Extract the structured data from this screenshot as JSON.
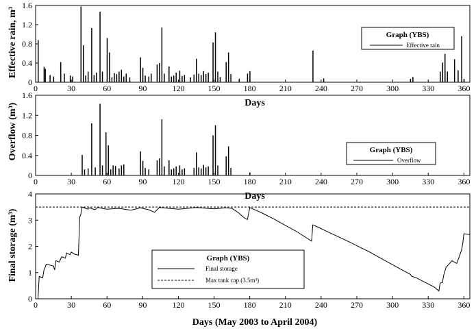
{
  "chart_data": [
    {
      "type": "bar",
      "ylabel": "Effective rain, m³",
      "xlabel": "Days",
      "xlim": [
        0,
        365
      ],
      "ylim": [
        0,
        1.6
      ],
      "xticks": [
        0,
        30,
        60,
        90,
        120,
        150,
        180,
        210,
        240,
        270,
        300,
        330,
        360
      ],
      "yticks": [
        "0",
        "0.4",
        "0.8",
        "1.2",
        "1.6"
      ],
      "legend": {
        "title": "Graph (YBS)",
        "position": "top-right",
        "entries": [
          "Effective rain"
        ]
      },
      "series": [
        {
          "name": "Effective rain",
          "color": "#000000",
          "points": [
            [
              2,
              0.88
            ],
            [
              7,
              0.32
            ],
            [
              8,
              0.28
            ],
            [
              12,
              0.15
            ],
            [
              15,
              0.12
            ],
            [
              21,
              0.42
            ],
            [
              24,
              0.18
            ],
            [
              29,
              0.14
            ],
            [
              31,
              0.12
            ],
            [
              38,
              1.58
            ],
            [
              40,
              0.77
            ],
            [
              42,
              0.14
            ],
            [
              44,
              0.22
            ],
            [
              47,
              1.13
            ],
            [
              49,
              0.15
            ],
            [
              51,
              0.2
            ],
            [
              54,
              1.47
            ],
            [
              56,
              0.22
            ],
            [
              60,
              0.92
            ],
            [
              62,
              0.62
            ],
            [
              64,
              0.1
            ],
            [
              66,
              0.19
            ],
            [
              68,
              0.17
            ],
            [
              70,
              0.22
            ],
            [
              72,
              0.26
            ],
            [
              74,
              0.12
            ],
            [
              76,
              0.18
            ],
            [
              79,
              0.1
            ],
            [
              88,
              0.52
            ],
            [
              90,
              0.3
            ],
            [
              92,
              0.14
            ],
            [
              95,
              0.12
            ],
            [
              97,
              0.18
            ],
            [
              102,
              0.37
            ],
            [
              104,
              0.4
            ],
            [
              106,
              1.14
            ],
            [
              108,
              0.18
            ],
            [
              112,
              0.33
            ],
            [
              114,
              0.12
            ],
            [
              116,
              0.14
            ],
            [
              118,
              0.2
            ],
            [
              121,
              0.24
            ],
            [
              123,
              0.13
            ],
            [
              125,
              0.15
            ],
            [
              130,
              0.1
            ],
            [
              133,
              0.16
            ],
            [
              135,
              0.49
            ],
            [
              137,
              0.18
            ],
            [
              139,
              0.15
            ],
            [
              141,
              0.23
            ],
            [
              143,
              0.17
            ],
            [
              145,
              0.2
            ],
            [
              149,
              0.83
            ],
            [
              151,
              1.04
            ],
            [
              153,
              0.22
            ],
            [
              155,
              0.11
            ],
            [
              160,
              0.42
            ],
            [
              162,
              0.62
            ],
            [
              164,
              0.17
            ],
            [
              171,
              0.07
            ],
            [
              178,
              0.18
            ],
            [
              180,
              0.23
            ],
            [
              233,
              0.66
            ],
            [
              242,
              0.08
            ],
            [
              315,
              0.07
            ],
            [
              317,
              0.11
            ],
            [
              340,
              0.22
            ],
            [
              342,
              0.41
            ],
            [
              344,
              0.59
            ],
            [
              346,
              0.22
            ],
            [
              352,
              0.48
            ],
            [
              355,
              0.25
            ],
            [
              358,
              0.96
            ],
            [
              360,
              0.07
            ]
          ]
        }
      ]
    },
    {
      "type": "bar",
      "ylabel": "Overflow (m³)",
      "xlabel": "Days",
      "xlim": [
        0,
        365
      ],
      "ylim": [
        0,
        1.6
      ],
      "xticks": [
        0,
        30,
        60,
        90,
        120,
        150,
        180,
        210,
        240,
        270,
        300,
        330,
        360
      ],
      "yticks": [
        "0",
        "0.4",
        "0.8",
        "1.2",
        "1.6"
      ],
      "legend": {
        "title": "Graph (YBS)",
        "position": "right",
        "entries": [
          "Overflow"
        ]
      },
      "series": [
        {
          "name": "Overflow",
          "color": "#000000",
          "points": [
            [
              39,
              0.41
            ],
            [
              41,
              0.12
            ],
            [
              44,
              0.14
            ],
            [
              47,
              1.04
            ],
            [
              50,
              0.16
            ],
            [
              54,
              1.43
            ],
            [
              56,
              0.2
            ],
            [
              59,
              0.86
            ],
            [
              61,
              0.6
            ],
            [
              63,
              0.12
            ],
            [
              65,
              0.2
            ],
            [
              67,
              0.19
            ],
            [
              70,
              0.14
            ],
            [
              72,
              0.2
            ],
            [
              74,
              0.22
            ],
            [
              88,
              0.48
            ],
            [
              90,
              0.29
            ],
            [
              92,
              0.15
            ],
            [
              95,
              0.12
            ],
            [
              102,
              0.3
            ],
            [
              104,
              0.34
            ],
            [
              106,
              1.12
            ],
            [
              108,
              0.18
            ],
            [
              112,
              0.3
            ],
            [
              114,
              0.12
            ],
            [
              116,
              0.14
            ],
            [
              118,
              0.18
            ],
            [
              121,
              0.2
            ],
            [
              123,
              0.12
            ],
            [
              125,
              0.14
            ],
            [
              133,
              0.15
            ],
            [
              135,
              0.46
            ],
            [
              137,
              0.16
            ],
            [
              139,
              0.14
            ],
            [
              141,
              0.21
            ],
            [
              143,
              0.16
            ],
            [
              145,
              0.18
            ],
            [
              149,
              0.8
            ],
            [
              151,
              1.0
            ],
            [
              153,
              0.2
            ],
            [
              160,
              0.38
            ],
            [
              162,
              0.58
            ],
            [
              164,
              0.15
            ],
            [
              180,
              0.06
            ]
          ]
        }
      ]
    },
    {
      "type": "line",
      "ylabel": "Final storage (m³)",
      "xlabel": "Days (May 2003 to April 2004)",
      "xlim": [
        0,
        365
      ],
      "ylim": [
        0,
        4
      ],
      "xticks": [
        0,
        30,
        60,
        90,
        120,
        150,
        180,
        210,
        240,
        270,
        300,
        330,
        360
      ],
      "yticks": [
        "0",
        "1",
        "2",
        "3",
        "4"
      ],
      "legend": {
        "title": "Graph (YBS)",
        "position": "bottom-center"
      },
      "series": [
        {
          "name": "Final storage",
          "color": "#000000",
          "dash": "solid",
          "points": [
            [
              1,
              0
            ],
            [
              2,
              0
            ],
            [
              3,
              0.85
            ],
            [
              6,
              0.8
            ],
            [
              7,
              1.1
            ],
            [
              8,
              1.2
            ],
            [
              9,
              1.32
            ],
            [
              15,
              1.25
            ],
            [
              16,
              1.1
            ],
            [
              17,
              1.45
            ],
            [
              20,
              1.4
            ],
            [
              21,
              1.52
            ],
            [
              22,
              1.6
            ],
            [
              25,
              1.55
            ],
            [
              26,
              1.75
            ],
            [
              29,
              1.68
            ],
            [
              30,
              1.78
            ],
            [
              33,
              1.7
            ],
            [
              36,
              1.66
            ],
            [
              37,
              3.1
            ],
            [
              38,
              3.22
            ],
            [
              39,
              3.5
            ],
            [
              44,
              3.42
            ],
            [
              45,
              3.47
            ],
            [
              50,
              3.4
            ],
            [
              52,
              3.48
            ],
            [
              60,
              3.42
            ],
            [
              70,
              3.45
            ],
            [
              80,
              3.38
            ],
            [
              88,
              3.47
            ],
            [
              95,
              3.4
            ],
            [
              100,
              3.3
            ],
            [
              104,
              3.48
            ],
            [
              120,
              3.42
            ],
            [
              135,
              3.48
            ],
            [
              150,
              3.43
            ],
            [
              160,
              3.47
            ],
            [
              165,
              3.45
            ],
            [
              170,
              3.3
            ],
            [
              175,
              3.1
            ],
            [
              178,
              3.02
            ],
            [
              180,
              3.48
            ],
            [
              190,
              3.28
            ],
            [
              200,
              3.05
            ],
            [
              210,
              2.8
            ],
            [
              220,
              2.55
            ],
            [
              232,
              2.2
            ],
            [
              233,
              2.82
            ],
            [
              240,
              2.68
            ],
            [
              241,
              2.65
            ],
            [
              260,
              2.25
            ],
            [
              280,
              1.8
            ],
            [
              300,
              1.3
            ],
            [
              315,
              0.93
            ],
            [
              316,
              0.86
            ],
            [
              320,
              0.8
            ],
            [
              335,
              0.45
            ],
            [
              339,
              0.3
            ],
            [
              340,
              0.6
            ],
            [
              342,
              0.62
            ],
            [
              343,
              0.9
            ],
            [
              345,
              1.2
            ],
            [
              350,
              1.45
            ],
            [
              354,
              1.35
            ],
            [
              356,
              1.6
            ],
            [
              358,
              1.85
            ],
            [
              359,
              2.1
            ],
            [
              360,
              2.48
            ],
            [
              365,
              2.45
            ]
          ]
        },
        {
          "name": "Max tank cap (3.5m³)",
          "color": "#000000",
          "dash": "dashed",
          "points": [
            [
              0,
              3.5
            ],
            [
              365,
              3.5
            ]
          ]
        }
      ]
    }
  ],
  "legend_labels": {
    "panel1_title": "Graph (YBS)",
    "panel1_entry": "Effective rain",
    "panel2_title": "Graph (YBS)",
    "panel2_entry": "Overflow",
    "panel3_title": "Graph (YBS)",
    "panel3_entry1": "Final storage",
    "panel3_entry2": "Max tank cap (3.5m³)"
  },
  "axis_titles": {
    "p1_ylabel": "Effective rain, m³",
    "p1_xlabel": "Days",
    "p2_ylabel": "Overflow (m³)",
    "p2_xlabel": "Days",
    "p3_ylabel": "Final storage (m³)",
    "p3_xlabel": "Days (May 2003 to April 2004)"
  }
}
